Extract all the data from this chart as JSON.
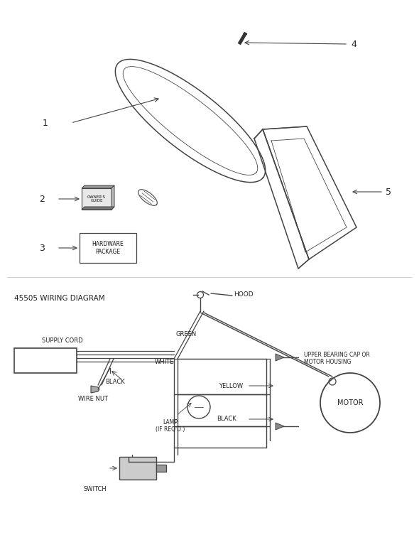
{
  "bg_color": "#ffffff",
  "line_color": "#444444",
  "text_color": "#222222",
  "wiring_title": "45505 WIRING DIAGRAM",
  "label_hood": "HOOD",
  "label_supply_cord": "SUPPLY CORD",
  "label_black1": "BLACK",
  "label_wire_nut": "WIRE NUT",
  "label_green": "GREEN",
  "label_white": "WHITE",
  "label_yellow": "YELLOW",
  "label_black2": "BLACK",
  "label_lamp": "LAMP\n(IF REQ'D.)",
  "label_switch": "SWITCH",
  "label_upper_bearing": "UPPER BEARING CAP OR\nMOTOR HOUSING",
  "label_motor": "MOTOR"
}
